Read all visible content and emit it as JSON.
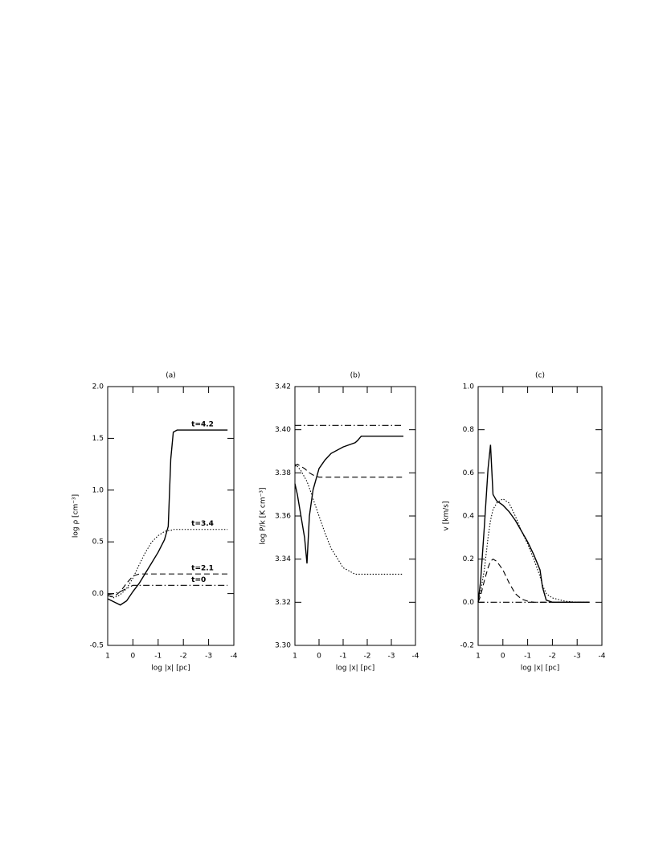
{
  "chart_data": [
    {
      "type": "line",
      "title": "(a)",
      "xlabel": "log |x| [pc]",
      "ylabel": "log ρ [cm⁻³]",
      "x": [
        1,
        0.75,
        0.5,
        0.25,
        0,
        -0.25,
        -0.5,
        -0.75,
        -1,
        -1.25,
        -1.4,
        -1.5,
        -1.6,
        -1.75,
        -2,
        -2.5,
        -3,
        -3.75
      ],
      "xlim": [
        1,
        -4
      ],
      "xticks": [
        1,
        0,
        -1,
        -2,
        -3,
        -4
      ],
      "ylim": [
        -0.5,
        2.0
      ],
      "yticks": [
        -0.5,
        {
          "value": 0,
          "label": "0.0"
        },
        0.5,
        {
          "value": 1,
          "label": "1.0"
        },
        1.5,
        {
          "value": 2,
          "label": "2.0"
        }
      ],
      "series": [
        {
          "name": "t=4.2",
          "style": "solid",
          "values": [
            -0.05,
            -0.08,
            -0.11,
            -0.07,
            0.02,
            0.1,
            0.2,
            0.3,
            0.4,
            0.52,
            0.65,
            1.3,
            1.56,
            1.58,
            1.58,
            1.58,
            1.58,
            1.58
          ]
        },
        {
          "name": "t=3.4",
          "style": "dotted",
          "values": [
            -0.02,
            -0.04,
            -0.01,
            0.05,
            0.15,
            0.28,
            0.4,
            0.5,
            0.56,
            0.6,
            0.61,
            0.61,
            0.62,
            0.62,
            0.62,
            0.62,
            0.62,
            0.62
          ]
        },
        {
          "name": "t=2.1",
          "style": "dashed",
          "values": [
            -0.02,
            -0.03,
            0.02,
            0.1,
            0.17,
            0.19,
            0.19,
            0.19,
            0.19,
            0.19,
            0.19,
            0.19,
            0.19,
            0.19,
            0.19,
            0.19,
            0.19,
            0.19
          ]
        },
        {
          "name": "t=0",
          "style": "dashdot",
          "values": [
            -0.01,
            0.0,
            0.02,
            0.05,
            0.08,
            0.08,
            0.08,
            0.08,
            0.08,
            0.08,
            0.08,
            0.08,
            0.08,
            0.08,
            0.08,
            0.08,
            0.08,
            0.08
          ]
        }
      ]
    },
    {
      "type": "line",
      "title": "(b)",
      "xlabel": "log |x| [pc]",
      "ylabel": "log P/k [K cm⁻³]",
      "x": [
        1,
        0.9,
        0.75,
        0.6,
        0.5,
        0.4,
        0.25,
        0,
        -0.25,
        -0.5,
        -1,
        -1.5,
        -1.6,
        -1.75,
        -2,
        -2.5,
        -3,
        -3.5
      ],
      "xlim": [
        1,
        -4
      ],
      "xticks": [
        1,
        0,
        -1,
        -2,
        -3,
        -4
      ],
      "ylim": [
        3.3,
        3.42
      ],
      "yticks": [
        {
          "value": 3.3,
          "label": "3.30"
        },
        3.32,
        3.34,
        3.36,
        3.38,
        {
          "value": 3.4,
          "label": "3.40"
        },
        3.42
      ],
      "series": [
        {
          "style": "solid",
          "values": [
            3.375,
            3.37,
            3.36,
            3.35,
            3.338,
            3.36,
            3.372,
            3.382,
            3.386,
            3.389,
            3.392,
            3.394,
            3.395,
            3.397,
            3.397,
            3.397,
            3.397,
            3.397
          ]
        },
        {
          "style": "dotted",
          "values": [
            3.384,
            3.383,
            3.381,
            3.378,
            3.376,
            3.373,
            3.368,
            3.36,
            3.352,
            3.345,
            3.336,
            3.333,
            3.333,
            3.333,
            3.333,
            3.333,
            3.333,
            3.333
          ]
        },
        {
          "style": "dashed",
          "values": [
            3.383,
            3.384,
            3.383,
            3.382,
            3.381,
            3.38,
            3.379,
            3.378,
            3.378,
            3.378,
            3.378,
            3.378,
            3.378,
            3.378,
            3.378,
            3.378,
            3.378,
            3.378
          ]
        },
        {
          "style": "dashdot",
          "values": [
            3.402,
            3.402,
            3.402,
            3.402,
            3.402,
            3.402,
            3.402,
            3.402,
            3.402,
            3.402,
            3.402,
            3.402,
            3.402,
            3.402,
            3.402,
            3.402,
            3.402,
            3.402
          ]
        }
      ]
    },
    {
      "type": "line",
      "title": "(c)",
      "xlabel": "log |x| [pc]",
      "ylabel": "v [km/s]",
      "x": [
        1,
        0.9,
        0.75,
        0.6,
        0.5,
        0.4,
        0.25,
        0,
        -0.25,
        -0.5,
        -0.75,
        -1,
        -1.25,
        -1.5,
        -1.6,
        -1.75,
        -2,
        -2.5,
        -3,
        -3.5
      ],
      "xlim": [
        1,
        -4
      ],
      "xticks": [
        1,
        0,
        -1,
        -2,
        -3,
        -4
      ],
      "ylim": [
        -0.2,
        1.0
      ],
      "yticks": [
        -0.2,
        {
          "value": 0,
          "label": "0.0"
        },
        0.2,
        0.4,
        0.6,
        0.8,
        {
          "value": 1,
          "label": "1.0"
        }
      ],
      "series": [
        {
          "style": "solid",
          "values": [
            0,
            0.1,
            0.35,
            0.62,
            0.73,
            0.5,
            0.47,
            0.45,
            0.42,
            0.38,
            0.33,
            0.28,
            0.22,
            0.15,
            0.07,
            0.01,
            0,
            0,
            0,
            0
          ]
        },
        {
          "style": "dotted",
          "values": [
            0,
            0.05,
            0.15,
            0.3,
            0.38,
            0.43,
            0.46,
            0.48,
            0.46,
            0.4,
            0.33,
            0.27,
            0.2,
            0.12,
            0.08,
            0.04,
            0.02,
            0.005,
            0,
            0
          ]
        },
        {
          "style": "dashed",
          "values": [
            0,
            0.03,
            0.1,
            0.16,
            0.19,
            0.2,
            0.19,
            0.15,
            0.09,
            0.04,
            0.015,
            0.005,
            0,
            0,
            0,
            0,
            0,
            0,
            0,
            0
          ]
        },
        {
          "style": "dashdot",
          "values": [
            0,
            0,
            0,
            0,
            0,
            0,
            0,
            0,
            0,
            0,
            0,
            0,
            0,
            0,
            0,
            0,
            0,
            0,
            0,
            0
          ]
        }
      ]
    }
  ]
}
